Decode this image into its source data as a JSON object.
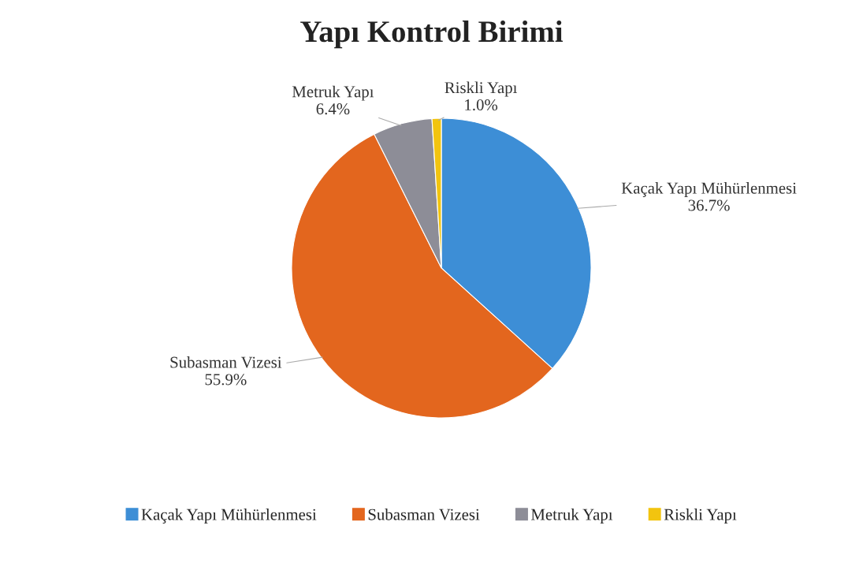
{
  "chart_data": {
    "type": "pie",
    "title": "Yapı Kontrol Birimi",
    "categories": [
      "Kaçak Yapı Mühürlenmesi",
      "Subasman Vizesi",
      "Metruk Yapı",
      "Riskli Yapı"
    ],
    "values": [
      36.7,
      55.9,
      6.4,
      1.0
    ],
    "value_labels": [
      "36.7%",
      "55.9%",
      "6.4%",
      "1.0%"
    ],
    "colors": [
      "#3d8ed6",
      "#e3661e",
      "#8d8d97",
      "#f2c40f"
    ],
    "legend": "bottom"
  }
}
